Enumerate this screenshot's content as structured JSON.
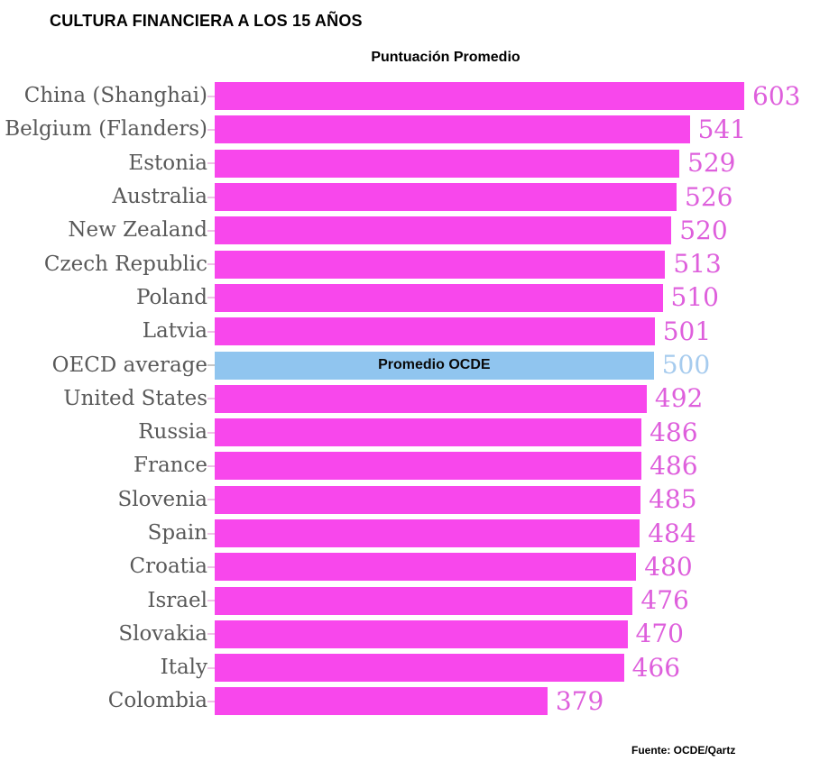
{
  "colors": {
    "bar": "#F847EC",
    "highlight_bar": "#90C5EF",
    "value_label": "#DE5FDC",
    "highlight_value_label": "#A6CBEE",
    "category_label": "#595959",
    "tick": "#ECC2E6",
    "highlight_tick": "#C6C6C6",
    "title_text": "#000000",
    "inner_label_text": "#0A0A0A"
  },
  "chart_data": {
    "type": "bar",
    "orientation": "horizontal",
    "title": "CULTURA FINANCIERA A LOS 15 AÑOS",
    "subtitle": "Puntuación Promedio",
    "xlabel": "",
    "ylabel": "",
    "xlim": [
      0,
      620
    ],
    "grid": false,
    "legend": false,
    "value_labels": "end-of-bar",
    "categories": [
      "China (Shanghai)",
      "Belgium (Flanders)",
      "Estonia",
      "Australia",
      "New Zealand",
      "Czech Republic",
      "Poland",
      "Latvia",
      "OECD average",
      "United States",
      "Russia",
      "France",
      "Slovenia",
      "Spain",
      "Croatia",
      "Israel",
      "Slovakia",
      "Italy",
      "Colombia"
    ],
    "values": [
      603,
      541,
      529,
      526,
      520,
      513,
      510,
      501,
      500,
      492,
      486,
      486,
      485,
      484,
      480,
      476,
      470,
      466,
      379
    ],
    "highlight": {
      "index": 8,
      "category": "OECD average",
      "value": 500,
      "bar_label": "Promedio OCDE"
    },
    "source": "Fuente: OCDE/Qartz"
  }
}
